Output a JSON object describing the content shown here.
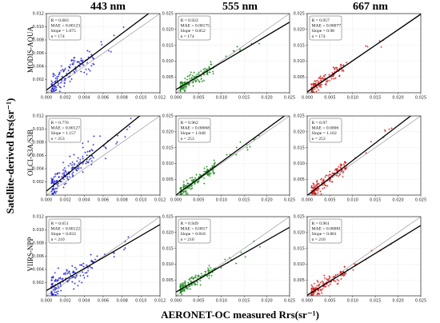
{
  "figure": {
    "y_title": "Satellite-derived Rrs(sr⁻¹)",
    "x_title": "AERONET-OC measured Rrs(sr⁻¹)"
  },
  "columns": [
    "443 nm",
    "555 nm",
    "667 nm"
  ],
  "rows": [
    "MODIS-AQUA",
    "OLCI-S3A/S3B",
    "VIIRS-NPP"
  ],
  "series_colors": {
    "443 nm": "#1f1fd6",
    "555 nm": "#1a8a1a",
    "667 nm": "#d61f1f"
  },
  "chart_data": [
    {
      "type": "scatter",
      "row": "MODIS-AQUA",
      "column": "443 nm",
      "xlim": [
        0,
        0.012
      ],
      "ylim": [
        0,
        0.012
      ],
      "xticks": [
        "0.000",
        "0.002",
        "0.004",
        "0.006",
        "0.008",
        "0.010",
        "0.012"
      ],
      "yticks": [
        "0.000",
        "0.002",
        "0.004",
        "0.006",
        "0.008",
        "0.010",
        "0.012"
      ],
      "stats": {
        "R": "0.683",
        "MAE": "0.00123",
        "Slope": "1.075",
        "n": "174"
      },
      "slope": 1.075,
      "intercept": 0.0004,
      "n_shown": 130
    },
    {
      "type": "scatter",
      "row": "MODIS-AQUA",
      "column": "555 nm",
      "xlim": [
        0,
        0.025
      ],
      "ylim": [
        0,
        0.025
      ],
      "xticks": [
        "0.000",
        "0.005",
        "0.010",
        "0.015",
        "0.020",
        "0.025"
      ],
      "yticks": [
        "0.000",
        "0.005",
        "0.010",
        "0.015",
        "0.020",
        "0.025"
      ],
      "stats": {
        "R": "0.922",
        "MAE": "0.00175",
        "Slope": "0.852",
        "n": "174"
      },
      "slope": 0.852,
      "intercept": 0.001,
      "n_shown": 130
    },
    {
      "type": "scatter",
      "row": "MODIS-AQUA",
      "column": "667 nm",
      "xlim": [
        0,
        0.025
      ],
      "ylim": [
        0,
        0.025
      ],
      "xticks": [
        "0.000",
        "0.005",
        "0.010",
        "0.015",
        "0.020",
        "0.025"
      ],
      "yticks": [
        "0.000",
        "0.005",
        "0.010",
        "0.015",
        "0.020",
        "0.025"
      ],
      "stats": {
        "R": "0.957",
        "MAE": "0.00077",
        "Slope": "0.98",
        "n": "174"
      },
      "slope": 0.98,
      "intercept": 0.0003,
      "n_shown": 130
    },
    {
      "type": "scatter",
      "row": "OLCI-S3A/S3B",
      "column": "443 nm",
      "xlim": [
        0,
        0.012
      ],
      "ylim": [
        0,
        0.012
      ],
      "xticks": [
        "0.000",
        "0.002",
        "0.004",
        "0.006",
        "0.008",
        "0.010",
        "0.012"
      ],
      "yticks": [
        "0.000",
        "0.002",
        "0.004",
        "0.006",
        "0.008",
        "0.010",
        "0.012"
      ],
      "stats": {
        "R": "0.776",
        "MAE": "0.00127",
        "Slope": "1.157",
        "n": "253"
      },
      "slope": 1.157,
      "intercept": 0.0006,
      "n_shown": 160
    },
    {
      "type": "scatter",
      "row": "OLCI-S3A/S3B",
      "column": "555 nm",
      "xlim": [
        0,
        0.025
      ],
      "ylim": [
        0,
        0.025
      ],
      "xticks": [
        "0.000",
        "0.005",
        "0.010",
        "0.015",
        "0.020",
        "0.025"
      ],
      "yticks": [
        "0.000",
        "0.005",
        "0.010",
        "0.015",
        "0.020",
        "0.025"
      ],
      "stats": {
        "R": "0.962",
        "MAE": "0.00068",
        "Slope": "1.048",
        "n": "253"
      },
      "slope": 1.048,
      "intercept": 0.0,
      "n_shown": 160
    },
    {
      "type": "scatter",
      "row": "OLCI-S3A/S3B",
      "column": "667 nm",
      "xlim": [
        0,
        0.025
      ],
      "ylim": [
        0,
        0.025
      ],
      "xticks": [
        "0.000",
        "0.005",
        "0.010",
        "0.015",
        "0.020",
        "0.025"
      ],
      "yticks": [
        "0.000",
        "0.005",
        "0.010",
        "0.015",
        "0.020",
        "0.025"
      ],
      "stats": {
        "R": "0.97",
        "MAE": "0.0006",
        "Slope": "1.102",
        "n": "253"
      },
      "slope": 1.102,
      "intercept": -0.0001,
      "n_shown": 160
    },
    {
      "type": "scatter",
      "row": "VIIRS-NPP",
      "column": "443 nm",
      "xlim": [
        0,
        0.012
      ],
      "ylim": [
        0,
        0.012
      ],
      "xticks": [
        "0.000",
        "0.002",
        "0.004",
        "0.006",
        "0.008",
        "0.010",
        "0.012"
      ],
      "yticks": [
        "0.000",
        "0.002",
        "0.004",
        "0.006",
        "0.008",
        "0.010",
        "0.012"
      ],
      "stats": {
        "R": "0.651",
        "MAE": "0.00122",
        "Slope": "0.833",
        "n": "210"
      },
      "slope": 0.833,
      "intercept": 0.0008,
      "n_shown": 140
    },
    {
      "type": "scatter",
      "row": "VIIRS-NPP",
      "column": "555 nm",
      "xlim": [
        0,
        0.025
      ],
      "ylim": [
        0,
        0.025
      ],
      "xticks": [
        "0.000",
        "0.005",
        "0.010",
        "0.015",
        "0.020",
        "0.025"
      ],
      "yticks": [
        "0.000",
        "0.005",
        "0.010",
        "0.015",
        "0.020",
        "0.025"
      ],
      "stats": {
        "R": "0.949",
        "MAE": "0.0017",
        "Slope": "0.818",
        "n": "210"
      },
      "slope": 0.818,
      "intercept": 0.0012,
      "n_shown": 140
    },
    {
      "type": "scatter",
      "row": "VIIRS-NPP",
      "column": "667 nm",
      "xlim": [
        0,
        0.025
      ],
      "ylim": [
        0,
        0.025
      ],
      "xticks": [
        "0.000",
        "0.005",
        "0.010",
        "0.015",
        "0.020",
        "0.025"
      ],
      "yticks": [
        "0.000",
        "0.005",
        "0.010",
        "0.015",
        "0.020",
        "0.025"
      ],
      "stats": {
        "R": "0.961",
        "MAE": "0.00081",
        "Slope": "0.881",
        "n": "210"
      },
      "slope": 0.881,
      "intercept": 0.0002,
      "n_shown": 140
    }
  ]
}
